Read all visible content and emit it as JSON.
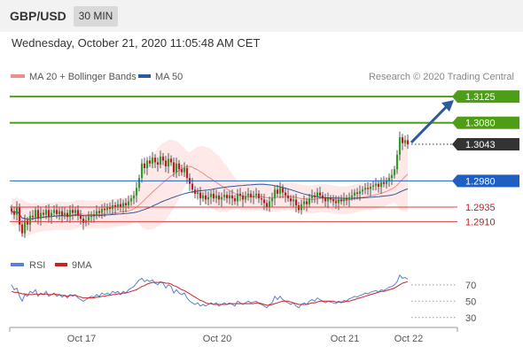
{
  "header": {
    "symbol": "GBP/USD",
    "timeframe": "30 MIN",
    "datetime": "Wednesday, October 21, 2020 11:05:48 AM CET",
    "credit": "Research © 2020 Trading Central"
  },
  "colors": {
    "up": "#2e9e28",
    "down": "#c41a21",
    "ma20": "#f08c8c",
    "ma50": "#2d5a9e",
    "bb_fill": "#fde0e0",
    "resistance": "#4d9e16",
    "support_blue": "#1f5fc1",
    "support_red": "#e04040",
    "target_arrow": "#2d5a9e",
    "rsi": "#5b7fd6",
    "rsi_ma": "#cc2020"
  },
  "chart_data": [
    {
      "type": "candlestick",
      "instrument": "GBP/USD",
      "interval": "30 MIN",
      "ylim": [
        1.2865,
        1.3145
      ],
      "legend": [
        {
          "name": "MA 20 + Bollinger Bands",
          "color": "#f08c8c"
        },
        {
          "name": "MA 50",
          "color": "#2d5a9e"
        }
      ],
      "x_ticks": [
        {
          "label": "Oct 17",
          "index": 25
        },
        {
          "label": "Oct 20",
          "index": 76
        },
        {
          "label": "Oct 21",
          "index": 124
        },
        {
          "label": "Oct 22",
          "index": 148
        }
      ],
      "candles_close": [
        1.2928,
        1.2922,
        1.2935,
        1.2905,
        1.289,
        1.2912,
        1.2905,
        1.292,
        1.2918,
        1.293,
        1.2915,
        1.2925,
        1.2922,
        1.293,
        1.2918,
        1.2925,
        1.293,
        1.2923,
        1.2928,
        1.292,
        1.2925,
        1.2918,
        1.293,
        1.2925,
        1.293,
        1.292,
        1.2915,
        1.2908,
        1.2912,
        1.2918,
        1.2922,
        1.292,
        1.2928,
        1.2925,
        1.2932,
        1.293,
        1.2935,
        1.2932,
        1.2938,
        1.2935,
        1.294,
        1.2935,
        1.2942,
        1.2938,
        1.2945,
        1.295,
        1.2955,
        1.2968,
        1.2985,
        1.301,
        1.3002,
        1.3015,
        1.301,
        1.302,
        1.3012,
        1.3008,
        1.3022,
        1.3015,
        1.3005,
        1.3018,
        1.3012,
        1.2995,
        1.301,
        1.3,
        1.2995,
        1.3002,
        1.2985,
        1.2975,
        1.2965,
        1.2958,
        1.296,
        1.295,
        1.2955,
        1.2948,
        1.2952,
        1.2958,
        1.295,
        1.2955,
        1.2948,
        1.2952,
        1.2956,
        1.295,
        1.2955,
        1.295,
        1.2945,
        1.2958,
        1.2955,
        1.2948,
        1.2954,
        1.2958,
        1.2952,
        1.2955,
        1.2958,
        1.295,
        1.2948,
        1.2942,
        1.2935,
        1.2945,
        1.295,
        1.2965,
        1.2958,
        1.2968,
        1.296,
        1.2955,
        1.295,
        1.2945,
        1.2948,
        1.2938,
        1.293,
        1.294,
        1.2945,
        1.294,
        1.295,
        1.2955,
        1.2952,
        1.296,
        1.2955,
        1.295,
        1.2945,
        1.295,
        1.2948,
        1.2945,
        1.2942,
        1.2948,
        1.2945,
        1.295,
        1.2948,
        1.2952,
        1.2955,
        1.296,
        1.2958,
        1.2962,
        1.2965,
        1.2968,
        1.2966,
        1.297,
        1.2972,
        1.2975,
        1.297,
        1.2978,
        1.2975,
        1.298,
        1.2985,
        1.299,
        1.3,
        1.3025,
        1.3055,
        1.3045,
        1.305,
        1.3043
      ],
      "levels": [
        {
          "label": "1.3125",
          "value": 1.3125,
          "kind": "target"
        },
        {
          "label": "1.3080",
          "value": 1.308,
          "kind": "resistance"
        },
        {
          "label": "1.3043",
          "value": 1.3043,
          "kind": "last"
        },
        {
          "label": "1.2980",
          "value": 1.298,
          "kind": "pivot"
        },
        {
          "label": "1.2935",
          "value": 1.2935,
          "kind": "support"
        },
        {
          "label": "1.2910",
          "value": 1.291,
          "kind": "support"
        }
      ]
    },
    {
      "type": "line",
      "ylim": [
        20,
        85
      ],
      "y_ticks": [
        "70",
        "50",
        "30"
      ],
      "y_tick_values": [
        70,
        50,
        30
      ],
      "legend": [
        {
          "name": "RSI",
          "color": "#5b7fd6"
        },
        {
          "name": "9MA",
          "color": "#cc2020"
        }
      ],
      "series": [
        {
          "name": "RSI",
          "values": [
            70,
            64,
            66,
            56,
            50,
            58,
            56,
            62,
            60,
            64,
            56,
            60,
            58,
            62,
            56,
            58,
            60,
            56,
            58,
            55,
            57,
            54,
            58,
            56,
            58,
            54,
            52,
            50,
            52,
            54,
            56,
            55,
            58,
            56,
            60,
            58,
            60,
            58,
            62,
            60,
            62,
            58,
            62,
            60,
            64,
            66,
            68,
            72,
            76,
            78,
            74,
            76,
            74,
            76,
            72,
            70,
            74,
            72,
            66,
            70,
            68,
            60,
            64,
            60,
            58,
            60,
            54,
            50,
            48,
            46,
            48,
            44,
            46,
            44,
            46,
            48,
            46,
            48,
            44,
            46,
            48,
            46,
            48,
            46,
            44,
            50,
            48,
            46,
            48,
            50,
            48,
            49,
            50,
            47,
            46,
            44,
            42,
            46,
            48,
            56,
            52,
            56,
            52,
            50,
            48,
            46,
            48,
            44,
            42,
            46,
            48,
            46,
            50,
            52,
            50,
            54,
            52,
            50,
            48,
            50,
            49,
            48,
            47,
            50,
            48,
            51,
            50,
            53,
            54,
            56,
            55,
            57,
            58,
            60,
            59,
            61,
            62,
            63,
            61,
            64,
            63,
            65,
            67,
            68,
            70,
            74,
            82,
            78,
            79,
            77
          ]
        },
        {
          "name": "9MA",
          "values": [
            62,
            61,
            61,
            60,
            59,
            59,
            58,
            58,
            58,
            59,
            58,
            59,
            58,
            59,
            58,
            58,
            59,
            58,
            58,
            57,
            57,
            56,
            57,
            57,
            57,
            56,
            55,
            54,
            54,
            54,
            54,
            54,
            55,
            55,
            56,
            56,
            57,
            57,
            58,
            58,
            59,
            59,
            60,
            60,
            61,
            62,
            63,
            64,
            66,
            68,
            69,
            71,
            72,
            73,
            73,
            73,
            73,
            73,
            72,
            72,
            71,
            69,
            68,
            66,
            64,
            63,
            61,
            59,
            57,
            55,
            53,
            51,
            50,
            48,
            47,
            47,
            46,
            46,
            46,
            46,
            46,
            46,
            47,
            47,
            47,
            47,
            47,
            47,
            47,
            47,
            47,
            47,
            48,
            48,
            47,
            46,
            45,
            45,
            46,
            47,
            48,
            49,
            50,
            50,
            50,
            49,
            48,
            47,
            46,
            46,
            46,
            46,
            47,
            48,
            48,
            49,
            50,
            50,
            50,
            50,
            50,
            50,
            49,
            49,
            49,
            49,
            50,
            50,
            51,
            52,
            53,
            54,
            55,
            56,
            57,
            58,
            59,
            60,
            61,
            62,
            62,
            63,
            64,
            65,
            66,
            68,
            70,
            72,
            73,
            74
          ]
        }
      ]
    }
  ]
}
